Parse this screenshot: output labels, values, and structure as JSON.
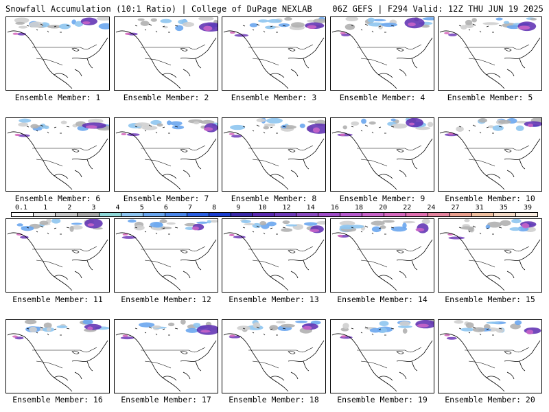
{
  "header": {
    "left_title": "Snowfall Accumulation (10:1 Ratio) | College of DuPage NEXLAB",
    "right_title": "06Z GEFS | F294 Valid: 12Z THU JUN 19 2025"
  },
  "panels": [
    {
      "label": "Ensemble Member: 1"
    },
    {
      "label": "Ensemble Member: 2"
    },
    {
      "label": "Ensemble Member: 3"
    },
    {
      "label": "Ensemble Member: 4"
    },
    {
      "label": "Ensemble Member: 5"
    },
    {
      "label": "Ensemble Member: 6"
    },
    {
      "label": "Ensemble Member: 7"
    },
    {
      "label": "Ensemble Member: 8"
    },
    {
      "label": "Ensemble Member: 9"
    },
    {
      "label": "Ensemble Member: 10"
    },
    {
      "label": "Ensemble Member: 11"
    },
    {
      "label": "Ensemble Member: 12"
    },
    {
      "label": "Ensemble Member: 13"
    },
    {
      "label": "Ensemble Member: 14"
    },
    {
      "label": "Ensemble Member: 15"
    },
    {
      "label": "Ensemble Member: 16"
    },
    {
      "label": "Ensemble Member: 17"
    },
    {
      "label": "Ensemble Member: 18"
    },
    {
      "label": "Ensemble Member: 19"
    },
    {
      "label": "Ensemble Member: 20"
    }
  ],
  "scale": {
    "labels": [
      "0.1",
      "1",
      "2",
      "3",
      "4",
      "5",
      "6",
      "7",
      "8",
      "9",
      "10",
      "12",
      "14",
      "16",
      "18",
      "20",
      "22",
      "24",
      "27",
      "31",
      "35",
      "39"
    ],
    "colors": [
      "#ffffff",
      "#e6e6e6",
      "#c8c8c8",
      "#a8a8a8",
      "#8fd8d8",
      "#8ec5f0",
      "#6aa6ee",
      "#4a86e8",
      "#2a5fe0",
      "#1a3ed0",
      "#3a2aa8",
      "#5a2ab0",
      "#6e3ab8",
      "#8a4ac0",
      "#a04ec8",
      "#b65acc",
      "#c864c8",
      "#d66abe",
      "#e070b0",
      "#e4849e",
      "#eaa08e",
      "#f0c0a0",
      "#f6dcc8",
      "#fbeee2"
    ]
  }
}
